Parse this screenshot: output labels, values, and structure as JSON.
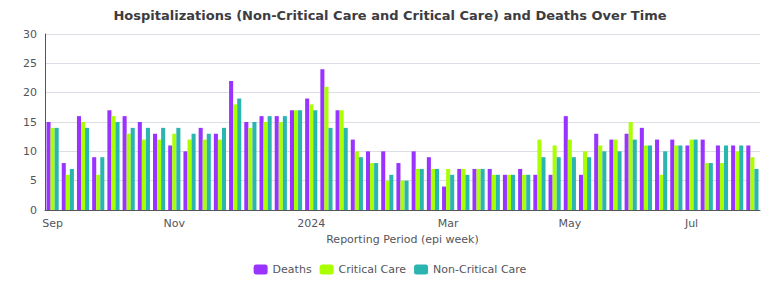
{
  "chart_data": {
    "type": "bar",
    "title": "Hospitalizations (Non-Critical Care and Critical Care) and Deaths Over Time",
    "xlabel": "Reporting Period (epi week)",
    "categories": [
      "Sep",
      null,
      null,
      null,
      null,
      null,
      null,
      null,
      "Nov",
      null,
      null,
      null,
      null,
      null,
      null,
      null,
      null,
      "2024",
      null,
      null,
      null,
      null,
      null,
      null,
      null,
      null,
      "Mar",
      null,
      null,
      null,
      null,
      null,
      null,
      null,
      "May",
      null,
      null,
      null,
      null,
      null,
      null,
      null,
      "Jul",
      null,
      null,
      null,
      null
    ],
    "series": [
      {
        "name": "Deaths",
        "color": "#9933ff",
        "values": [
          15,
          8,
          16,
          9,
          17,
          16,
          15,
          13,
          11,
          10,
          14,
          13,
          22,
          15,
          16,
          16,
          17,
          19,
          24,
          17,
          12,
          10,
          10,
          8,
          10,
          9,
          4,
          7,
          7,
          7,
          6,
          7,
          6,
          6,
          16,
          6,
          13,
          12,
          13,
          14,
          12,
          12,
          11,
          12,
          11,
          11,
          11
        ]
      },
      {
        "name": "Critical Care",
        "color": "#aaff00",
        "values": [
          14,
          6,
          15,
          6,
          16,
          13,
          12,
          12,
          13,
          12,
          12,
          12,
          18,
          14,
          15,
          15,
          17,
          18,
          21,
          17,
          10,
          8,
          5,
          5,
          7,
          7,
          7,
          7,
          7,
          6,
          6,
          6,
          12,
          11,
          12,
          10,
          11,
          12,
          15,
          11,
          6,
          11,
          12,
          8,
          8,
          10,
          9
        ]
      },
      {
        "name": "Non-Critical Care",
        "color": "#2ab5b0",
        "values": [
          14,
          7,
          14,
          9,
          15,
          14,
          14,
          14,
          14,
          13,
          13,
          14,
          19,
          15,
          16,
          16,
          17,
          17,
          14,
          14,
          9,
          8,
          6,
          5,
          7,
          7,
          6,
          6,
          7,
          6,
          6,
          6,
          9,
          9,
          9,
          9,
          10,
          10,
          12,
          11,
          10,
          11,
          12,
          8,
          11,
          11,
          7
        ]
      }
    ],
    "ylim": [
      0,
      30
    ],
    "yticks": [
      0,
      5,
      10,
      15,
      20,
      25,
      30
    ],
    "grid": true,
    "legend": "bottom"
  }
}
